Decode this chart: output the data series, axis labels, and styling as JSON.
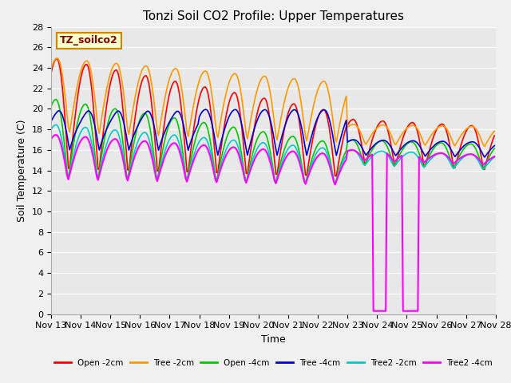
{
  "title": "Tonzi Soil CO2 Profile: Upper Temperatures",
  "xlabel": "Time",
  "ylabel": "Soil Temperature (C)",
  "ylim": [
    0,
    28
  ],
  "annotation_box": "TZ_soilco2",
  "background_color": "#f0f0f0",
  "plot_bg_color": "#e8e8e8",
  "grid_color": "#ffffff",
  "legend_entries": [
    "Open -2cm",
    "Tree -2cm",
    "Open -4cm",
    "Tree -4cm",
    "Tree2 -2cm",
    "Tree2 -4cm"
  ],
  "line_colors": [
    "#ff0000",
    "#ff9900",
    "#00cc00",
    "#0000dd",
    "#00cccc",
    "#ff00ff"
  ],
  "xtick_labels": [
    "Nov 13",
    "Nov 14",
    "Nov 15",
    "Nov 16",
    "Nov 17",
    "Nov 18",
    "Nov 19",
    "Nov 20",
    "Nov 21",
    "Nov 22",
    "Nov 23",
    "Nov 24",
    "Nov 25",
    "Nov 26",
    "Nov 27",
    "Nov 28"
  ],
  "figsize": [
    6.4,
    4.8
  ],
  "dpi": 100
}
